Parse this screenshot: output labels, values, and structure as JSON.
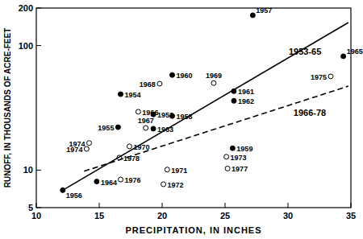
{
  "chart_data": {
    "type": "scatter",
    "x_label": "PRECIPITATION, IN INCHES",
    "y_label": "RUNOFF, IN THOUSANDS OF ACRE-FEET",
    "xlim": [
      10,
      35
    ],
    "ylim": [
      5,
      200
    ],
    "xticks": [
      10,
      15,
      20,
      25,
      30,
      35
    ],
    "yticks": [
      5,
      10,
      100,
      200
    ],
    "log": "y",
    "grid": false,
    "color": "#000000",
    "series": [
      {
        "type": "scatter",
        "marker": "filled",
        "x": [
          19.3,
          16.7,
          16.5,
          12.1,
          27.2,
          20.8,
          25.6,
          20.8,
          25.7,
          25.7,
          19.3,
          14.8,
          34.4
        ],
        "values": [
          28,
          40.7,
          22.1,
          6.9,
          175,
          27.2,
          15,
          58,
          43,
          36,
          21.5,
          8.1,
          82
        ],
        "labels": [
          "1953",
          "1954",
          "1955",
          "1956",
          "1957",
          "1958",
          "1959",
          "1960",
          "1961",
          "1962",
          "1963",
          "1964",
          "1965"
        ]
      },
      {
        "type": "scatter",
        "marker": "open",
        "x": [
          18.1,
          18.7,
          19.8,
          24.1,
          17.4,
          20.4,
          20.1,
          25.1,
          14.2,
          14.0,
          33.4,
          16.7,
          25.2,
          16.6
        ],
        "values": [
          29.4,
          21.8,
          49.4,
          50,
          15.5,
          10.1,
          7.7,
          12.8,
          16.5,
          14.8,
          56.5,
          8.4,
          10.3,
          12.6
        ],
        "labels": [
          "1966",
          "1967",
          "1968",
          "1969",
          "1970",
          "1971",
          "1972",
          "1973",
          "1974",
          "1974",
          "1975",
          "1976",
          "1977",
          "1978"
        ]
      },
      {
        "type": "line",
        "name": "1953-65",
        "line_style": "solid",
        "x": [
          12.1,
          34.8
        ],
        "values": [
          6.9,
          153
        ]
      },
      {
        "type": "line",
        "name": "1966-78",
        "line_style": "dashed",
        "x": [
          13.8,
          34.8
        ],
        "values": [
          9.8,
          47.2
        ]
      }
    ]
  }
}
